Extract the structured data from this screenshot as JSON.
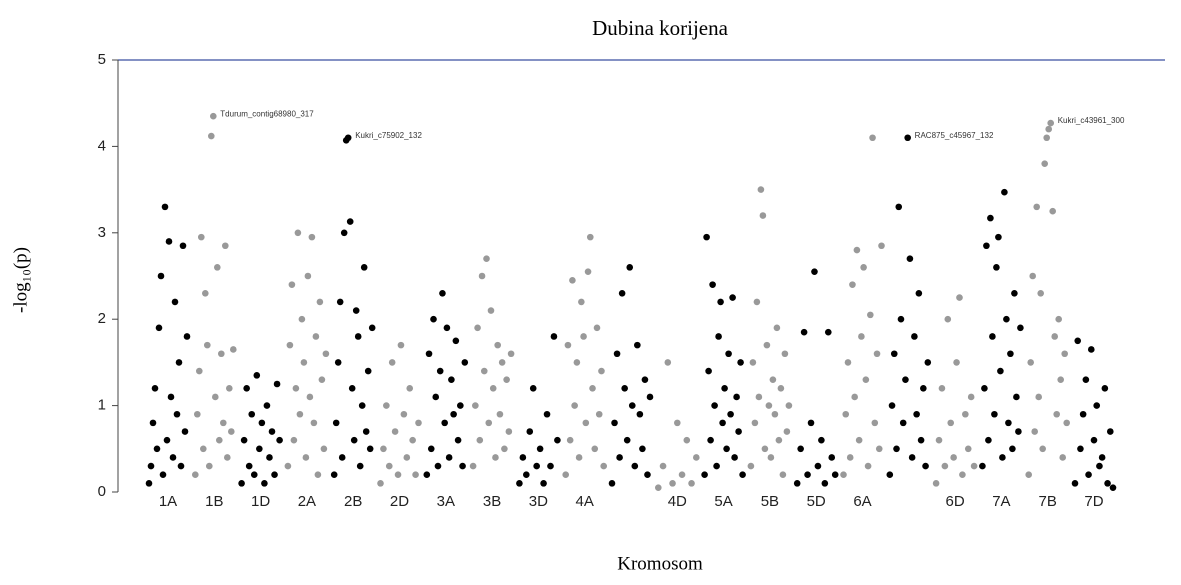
{
  "chart_data": {
    "type": "manhattan",
    "title": "Dubina korijena",
    "x_label": "Kromosom",
    "y_label": "-log₁₀(p)",
    "ylim": [
      0,
      5
    ],
    "yticks": [
      0,
      1,
      2,
      3,
      4,
      5
    ],
    "colors": [
      "#000000",
      "#999999"
    ],
    "groups": [
      {
        "label": "1A",
        "values": [
          0.1,
          0.3,
          0.8,
          1.2,
          0.5,
          1.9,
          2.5,
          0.2,
          3.3,
          0.6,
          2.9,
          1.1,
          0.4,
          2.2,
          0.9,
          1.5,
          0.3,
          2.85,
          0.7,
          1.8
        ]
      },
      {
        "label": "1B",
        "values": [
          0.2,
          0.9,
          1.4,
          2.95,
          0.5,
          2.3,
          1.7,
          0.3,
          4.12,
          4.35,
          1.1,
          2.6,
          0.6,
          1.6,
          0.8,
          2.85,
          0.4,
          1.2,
          0.7,
          1.65
        ],
        "annotation": "Tdurum_contig68980_317"
      },
      {
        "label": "1D",
        "values": [
          0.1,
          0.6,
          1.2,
          0.3,
          0.9,
          0.2,
          1.35,
          0.5,
          0.8,
          0.1,
          1.0,
          0.4,
          0.7,
          0.2,
          1.25,
          0.6
        ]
      },
      {
        "label": "2A",
        "values": [
          0.3,
          1.7,
          2.4,
          0.6,
          1.2,
          3.0,
          0.9,
          2.0,
          1.5,
          0.4,
          2.5,
          1.1,
          2.95,
          0.8,
          1.8,
          0.2,
          2.2,
          1.3,
          0.5,
          1.6
        ]
      },
      {
        "label": "2B",
        "values": [
          0.2,
          0.8,
          1.5,
          2.2,
          0.4,
          3.0,
          4.07,
          4.1,
          3.13,
          1.2,
          0.6,
          2.1,
          1.8,
          0.3,
          1.0,
          2.6,
          0.7,
          1.4,
          0.5,
          1.9
        ],
        "annotation": "Kukri_c75902_132"
      },
      {
        "label": "2D",
        "values": [
          0.1,
          0.5,
          1.0,
          0.3,
          1.5,
          0.7,
          0.2,
          1.7,
          0.9,
          0.4,
          1.2,
          0.6,
          0.2,
          0.8
        ]
      },
      {
        "label": "3A",
        "values": [
          0.2,
          1.6,
          0.5,
          2.0,
          1.1,
          0.3,
          1.4,
          2.3,
          0.8,
          1.9,
          0.4,
          1.3,
          0.9,
          1.75,
          0.6,
          1.0,
          0.3,
          1.5
        ]
      },
      {
        "label": "3B",
        "values": [
          0.3,
          1.0,
          1.9,
          0.6,
          2.5,
          1.4,
          2.7,
          0.8,
          2.1,
          1.2,
          0.4,
          1.7,
          0.9,
          1.5,
          0.5,
          1.3,
          0.7,
          1.6
        ]
      },
      {
        "label": "3D",
        "values": [
          0.1,
          0.4,
          0.2,
          0.7,
          1.2,
          0.3,
          0.5,
          0.1,
          0.9,
          0.3,
          1.8,
          0.6
        ]
      },
      {
        "label": "4A",
        "values": [
          0.2,
          1.7,
          0.6,
          2.45,
          1.0,
          1.5,
          0.4,
          2.2,
          1.8,
          0.8,
          2.55,
          2.95,
          1.2,
          0.5,
          1.9,
          0.9,
          1.4,
          0.3
        ]
      },
      {
        "label": null,
        "values": [
          0.1,
          0.8,
          1.6,
          0.4,
          2.3,
          1.2,
          0.6,
          2.6,
          1.0,
          0.3,
          1.7,
          0.9,
          0.5,
          1.3,
          0.2,
          1.1
        ]
      },
      {
        "label": "4D",
        "values": [
          0.05,
          0.3,
          1.5,
          0.1,
          0.8,
          0.2,
          0.6,
          0.1,
          0.4
        ]
      },
      {
        "label": "5A",
        "values": [
          0.2,
          2.95,
          1.4,
          0.6,
          2.4,
          1.0,
          0.3,
          1.8,
          2.2,
          0.8,
          1.2,
          0.5,
          1.6,
          0.9,
          2.25,
          0.4,
          1.1,
          0.7,
          1.5,
          0.2
        ]
      },
      {
        "label": "5B",
        "values": [
          0.3,
          1.5,
          0.8,
          2.2,
          1.1,
          3.5,
          3.2,
          0.5,
          1.7,
          1.0,
          0.4,
          1.3,
          0.9,
          1.9,
          0.6,
          1.2,
          0.2,
          1.6,
          0.7,
          1.0
        ]
      },
      {
        "label": "5D",
        "values": [
          0.1,
          0.5,
          1.85,
          0.2,
          0.8,
          2.55,
          0.3,
          0.6,
          0.1,
          1.85,
          0.4,
          0.2
        ]
      },
      {
        "label": "6A",
        "values": [
          0.2,
          0.9,
          1.5,
          0.4,
          2.4,
          1.1,
          2.8,
          0.6,
          1.8,
          2.6,
          1.3,
          0.3,
          2.05,
          4.1,
          0.8,
          1.6,
          0.5,
          2.85
        ]
      },
      {
        "label": null,
        "values": [
          0.2,
          1.0,
          1.6,
          0.5,
          3.3,
          2.0,
          0.8,
          1.3,
          4.1,
          2.7,
          0.4,
          1.8,
          0.9,
          2.3,
          0.6,
          1.2,
          0.3,
          1.5
        ],
        "annotation": "RAC875_c45967_132"
      },
      {
        "label": "6D",
        "values": [
          0.1,
          0.6,
          1.2,
          0.3,
          2.0,
          0.8,
          0.4,
          1.5,
          2.25,
          0.2,
          0.9,
          0.5,
          1.1,
          0.3
        ]
      },
      {
        "label": "7A",
        "values": [
          0.3,
          1.2,
          2.85,
          0.6,
          3.17,
          1.8,
          0.9,
          2.6,
          2.95,
          1.4,
          0.4,
          3.47,
          2.0,
          0.8,
          1.6,
          0.5,
          2.3,
          1.1,
          0.7,
          1.9
        ]
      },
      {
        "label": "7B",
        "values": [
          0.2,
          1.5,
          2.5,
          0.7,
          3.3,
          1.1,
          2.3,
          0.5,
          3.8,
          4.1,
          4.2,
          4.27,
          3.25,
          1.8,
          0.9,
          2.0,
          1.3,
          0.4,
          1.6,
          0.8
        ],
        "annotation": "Kukri_c43961_300"
      },
      {
        "label": "7D",
        "values": [
          0.1,
          1.75,
          0.5,
          0.9,
          1.3,
          0.2,
          1.65,
          0.6,
          1.0,
          0.3,
          0.4,
          1.2,
          0.1,
          0.7,
          0.05
        ]
      }
    ]
  }
}
